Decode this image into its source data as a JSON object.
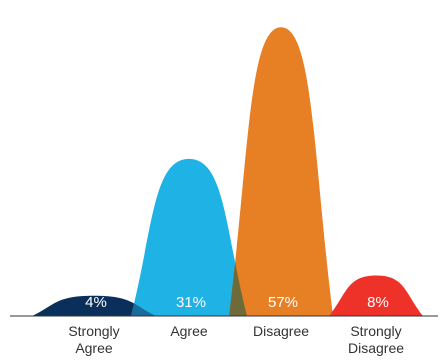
{
  "chart_data": {
    "type": "bar",
    "categories": [
      [
        "Strongly",
        "Agree"
      ],
      [
        "Agree"
      ],
      [
        "Disagree"
      ],
      [
        "Strongly",
        "Disagree"
      ]
    ],
    "values": [
      4,
      31,
      57,
      8
    ],
    "value_labels": [
      "4%",
      "31%",
      "57%",
      "8%"
    ],
    "colors": [
      "#0b2f5b",
      "#1fb2e5",
      "#e77f24",
      "#ee3129"
    ],
    "overlap_colors": [
      "#1a6a9a",
      "#6e6a3a",
      "#e0432a"
    ],
    "ylim": [
      0,
      60
    ],
    "title": "",
    "xlabel": "",
    "ylabel": ""
  }
}
